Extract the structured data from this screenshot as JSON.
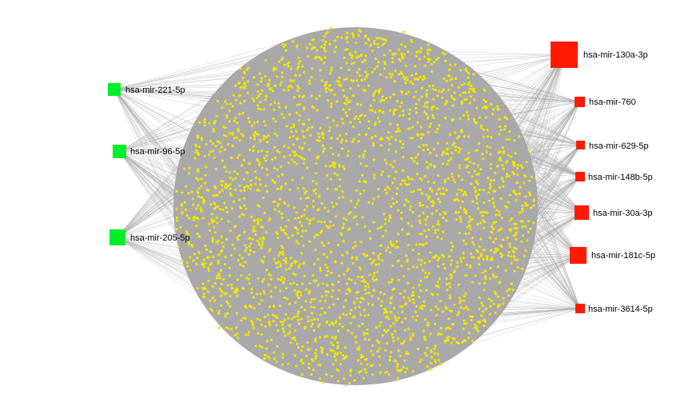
{
  "network": {
    "colors": {
      "edge": "#a9a9a9",
      "target_node": "#f2e400",
      "downregulated_hub": "#00ee2a",
      "upregulated_hub": "#ff1a00",
      "background": "#ffffff"
    },
    "hubs": [
      {
        "id": "hsa-mir-221-5p",
        "label": "hsa-mir-221-5p",
        "group": "green"
      },
      {
        "id": "hsa-mir-96-5p",
        "label": "hsa-mir-96-5p",
        "group": "green"
      },
      {
        "id": "hsa-mir-205-5p",
        "label": "hsa-mir-205-5p",
        "group": "green"
      },
      {
        "id": "hsa-mir-130a-3p",
        "label": "hsa-mir-130a-3p",
        "group": "red"
      },
      {
        "id": "hsa-mir-760",
        "label": "hsa-mir-760",
        "group": "red"
      },
      {
        "id": "hsa-mir-629-5p",
        "label": "hsa-mir-629-5p",
        "group": "red"
      },
      {
        "id": "hsa-mir-148b-5p",
        "label": "hsa-mir-148b-5p",
        "group": "red"
      },
      {
        "id": "hsa-mir-30a-3p",
        "label": "hsa-mir-30a-3p",
        "group": "red"
      },
      {
        "id": "hsa-mir-181c-5p",
        "label": "hsa-mir-181c-5p",
        "group": "red"
      },
      {
        "id": "hsa-mir-3614-5p",
        "label": "hsa-mir-3614-5p",
        "group": "red"
      }
    ]
  }
}
